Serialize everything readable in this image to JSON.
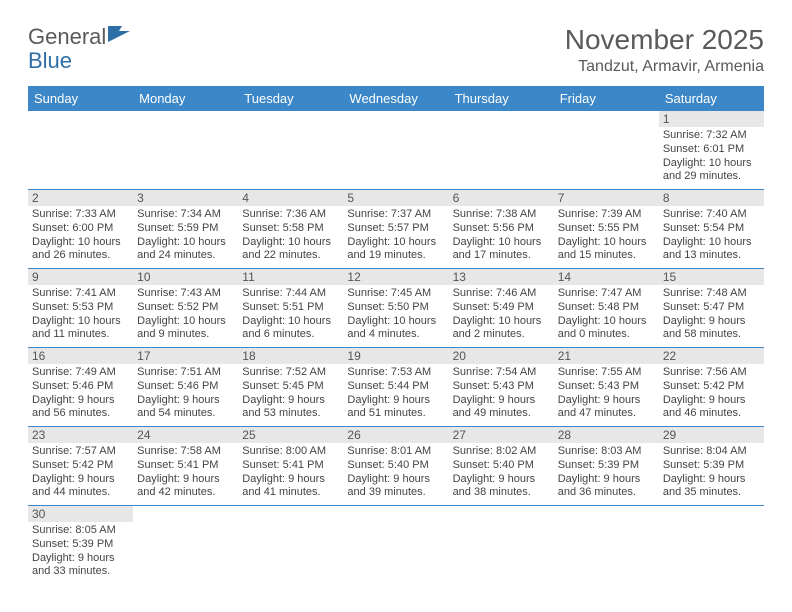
{
  "logo": {
    "text1": "General",
    "text2": "Blue"
  },
  "title": "November 2025",
  "location": "Tandzut, Armavir, Armenia",
  "colors": {
    "header_bg": "#3b87c8",
    "header_text": "#ffffff",
    "daynum_bg": "#e7e7e7",
    "rule": "#3b87c8",
    "logo_accent": "#2f6fa7"
  },
  "weekdays": [
    "Sunday",
    "Monday",
    "Tuesday",
    "Wednesday",
    "Thursday",
    "Friday",
    "Saturday"
  ],
  "grid": [
    [
      null,
      null,
      null,
      null,
      null,
      null,
      {
        "n": "1",
        "sr": "Sunrise: 7:32 AM",
        "ss": "Sunset: 6:01 PM",
        "dl": "Daylight: 10 hours and 29 minutes."
      }
    ],
    [
      {
        "n": "2",
        "sr": "Sunrise: 7:33 AM",
        "ss": "Sunset: 6:00 PM",
        "dl": "Daylight: 10 hours and 26 minutes."
      },
      {
        "n": "3",
        "sr": "Sunrise: 7:34 AM",
        "ss": "Sunset: 5:59 PM",
        "dl": "Daylight: 10 hours and 24 minutes."
      },
      {
        "n": "4",
        "sr": "Sunrise: 7:36 AM",
        "ss": "Sunset: 5:58 PM",
        "dl": "Daylight: 10 hours and 22 minutes."
      },
      {
        "n": "5",
        "sr": "Sunrise: 7:37 AM",
        "ss": "Sunset: 5:57 PM",
        "dl": "Daylight: 10 hours and 19 minutes."
      },
      {
        "n": "6",
        "sr": "Sunrise: 7:38 AM",
        "ss": "Sunset: 5:56 PM",
        "dl": "Daylight: 10 hours and 17 minutes."
      },
      {
        "n": "7",
        "sr": "Sunrise: 7:39 AM",
        "ss": "Sunset: 5:55 PM",
        "dl": "Daylight: 10 hours and 15 minutes."
      },
      {
        "n": "8",
        "sr": "Sunrise: 7:40 AM",
        "ss": "Sunset: 5:54 PM",
        "dl": "Daylight: 10 hours and 13 minutes."
      }
    ],
    [
      {
        "n": "9",
        "sr": "Sunrise: 7:41 AM",
        "ss": "Sunset: 5:53 PM",
        "dl": "Daylight: 10 hours and 11 minutes."
      },
      {
        "n": "10",
        "sr": "Sunrise: 7:43 AM",
        "ss": "Sunset: 5:52 PM",
        "dl": "Daylight: 10 hours and 9 minutes."
      },
      {
        "n": "11",
        "sr": "Sunrise: 7:44 AM",
        "ss": "Sunset: 5:51 PM",
        "dl": "Daylight: 10 hours and 6 minutes."
      },
      {
        "n": "12",
        "sr": "Sunrise: 7:45 AM",
        "ss": "Sunset: 5:50 PM",
        "dl": "Daylight: 10 hours and 4 minutes."
      },
      {
        "n": "13",
        "sr": "Sunrise: 7:46 AM",
        "ss": "Sunset: 5:49 PM",
        "dl": "Daylight: 10 hours and 2 minutes."
      },
      {
        "n": "14",
        "sr": "Sunrise: 7:47 AM",
        "ss": "Sunset: 5:48 PM",
        "dl": "Daylight: 10 hours and 0 minutes."
      },
      {
        "n": "15",
        "sr": "Sunrise: 7:48 AM",
        "ss": "Sunset: 5:47 PM",
        "dl": "Daylight: 9 hours and 58 minutes."
      }
    ],
    [
      {
        "n": "16",
        "sr": "Sunrise: 7:49 AM",
        "ss": "Sunset: 5:46 PM",
        "dl": "Daylight: 9 hours and 56 minutes."
      },
      {
        "n": "17",
        "sr": "Sunrise: 7:51 AM",
        "ss": "Sunset: 5:46 PM",
        "dl": "Daylight: 9 hours and 54 minutes."
      },
      {
        "n": "18",
        "sr": "Sunrise: 7:52 AM",
        "ss": "Sunset: 5:45 PM",
        "dl": "Daylight: 9 hours and 53 minutes."
      },
      {
        "n": "19",
        "sr": "Sunrise: 7:53 AM",
        "ss": "Sunset: 5:44 PM",
        "dl": "Daylight: 9 hours and 51 minutes."
      },
      {
        "n": "20",
        "sr": "Sunrise: 7:54 AM",
        "ss": "Sunset: 5:43 PM",
        "dl": "Daylight: 9 hours and 49 minutes."
      },
      {
        "n": "21",
        "sr": "Sunrise: 7:55 AM",
        "ss": "Sunset: 5:43 PM",
        "dl": "Daylight: 9 hours and 47 minutes."
      },
      {
        "n": "22",
        "sr": "Sunrise: 7:56 AM",
        "ss": "Sunset: 5:42 PM",
        "dl": "Daylight: 9 hours and 46 minutes."
      }
    ],
    [
      {
        "n": "23",
        "sr": "Sunrise: 7:57 AM",
        "ss": "Sunset: 5:42 PM",
        "dl": "Daylight: 9 hours and 44 minutes."
      },
      {
        "n": "24",
        "sr": "Sunrise: 7:58 AM",
        "ss": "Sunset: 5:41 PM",
        "dl": "Daylight: 9 hours and 42 minutes."
      },
      {
        "n": "25",
        "sr": "Sunrise: 8:00 AM",
        "ss": "Sunset: 5:41 PM",
        "dl": "Daylight: 9 hours and 41 minutes."
      },
      {
        "n": "26",
        "sr": "Sunrise: 8:01 AM",
        "ss": "Sunset: 5:40 PM",
        "dl": "Daylight: 9 hours and 39 minutes."
      },
      {
        "n": "27",
        "sr": "Sunrise: 8:02 AM",
        "ss": "Sunset: 5:40 PM",
        "dl": "Daylight: 9 hours and 38 minutes."
      },
      {
        "n": "28",
        "sr": "Sunrise: 8:03 AM",
        "ss": "Sunset: 5:39 PM",
        "dl": "Daylight: 9 hours and 36 minutes."
      },
      {
        "n": "29",
        "sr": "Sunrise: 8:04 AM",
        "ss": "Sunset: 5:39 PM",
        "dl": "Daylight: 9 hours and 35 minutes."
      }
    ],
    [
      {
        "n": "30",
        "sr": "Sunrise: 8:05 AM",
        "ss": "Sunset: 5:39 PM",
        "dl": "Daylight: 9 hours and 33 minutes."
      },
      null,
      null,
      null,
      null,
      null,
      null
    ]
  ]
}
